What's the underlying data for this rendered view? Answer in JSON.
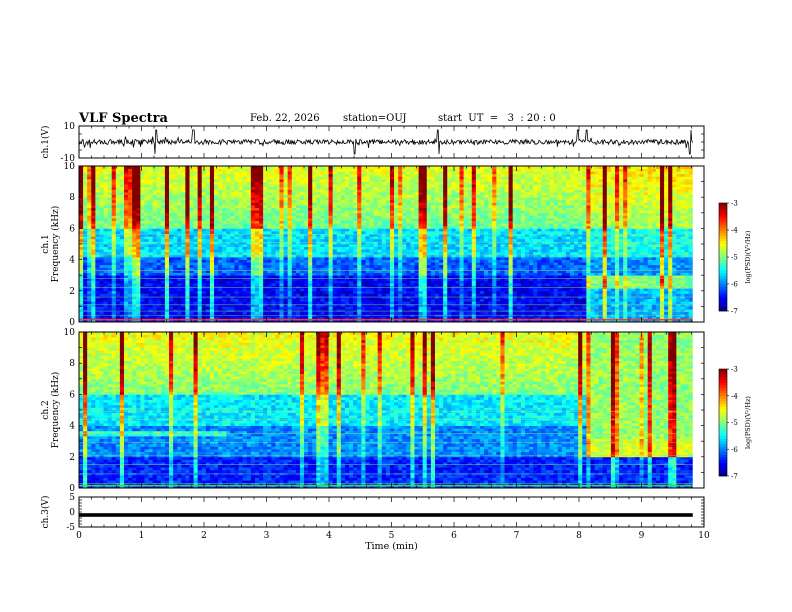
{
  "header": {
    "title": "VLF Spectra",
    "date": "Feb. 22, 2026",
    "station": "station=OUJ",
    "start_ut": "start  UT  =   3  : 20 : 0"
  },
  "chart_data": [
    {
      "type": "line",
      "name": "ch1-voltage",
      "ylabel": "ch.1(V)",
      "ylim": [
        -10,
        10
      ],
      "yticks": [
        "10",
        "-10"
      ],
      "x_range_min": [
        0,
        9.82
      ],
      "baseline_v": 0,
      "description_values": {
        "typical_level_v": 0,
        "spike_times_min": [
          1.23,
          1.83,
          4.41,
          5.75,
          7.98,
          8.12,
          9.78
        ]
      }
    },
    {
      "type": "heatmap",
      "name": "ch1-spectrogram",
      "ylabel": "Frequency (kHz)",
      "channel_label": "ch.1",
      "ylim": [
        0,
        10
      ],
      "yticks": [
        "0",
        "2",
        "4",
        "6",
        "8",
        "10"
      ],
      "colorbar": {
        "label": "log(PSD)(V²/Hz)",
        "range": [
          -7,
          -3
        ],
        "ticks": [
          "-3",
          "-4",
          "-5",
          "-6",
          "-7"
        ]
      }
    },
    {
      "type": "heatmap",
      "name": "ch2-spectrogram",
      "ylabel": "Frequency (kHz)",
      "channel_label": "ch.2",
      "ylim": [
        0,
        10
      ],
      "yticks": [
        "0",
        "2",
        "4",
        "6",
        "8",
        "10"
      ],
      "colorbar": {
        "label": "log(PSD)(V²/Hz)",
        "range": [
          -7,
          -3
        ],
        "ticks": [
          "-3",
          "-4",
          "-5",
          "-6",
          "-7"
        ]
      }
    },
    {
      "type": "line",
      "name": "ch3-voltage",
      "ylabel": "ch.3(V)",
      "ylim": [
        -5,
        5
      ],
      "yticks": [
        "5",
        "0",
        "-5"
      ],
      "level_v": -1
    }
  ],
  "xaxis": {
    "label": "Time (min)",
    "range": [
      0,
      10
    ],
    "ticks": [
      "0",
      "1",
      "2",
      "3",
      "4",
      "5",
      "6",
      "7",
      "8",
      "9",
      "10"
    ],
    "data_end_min": 9.82
  }
}
